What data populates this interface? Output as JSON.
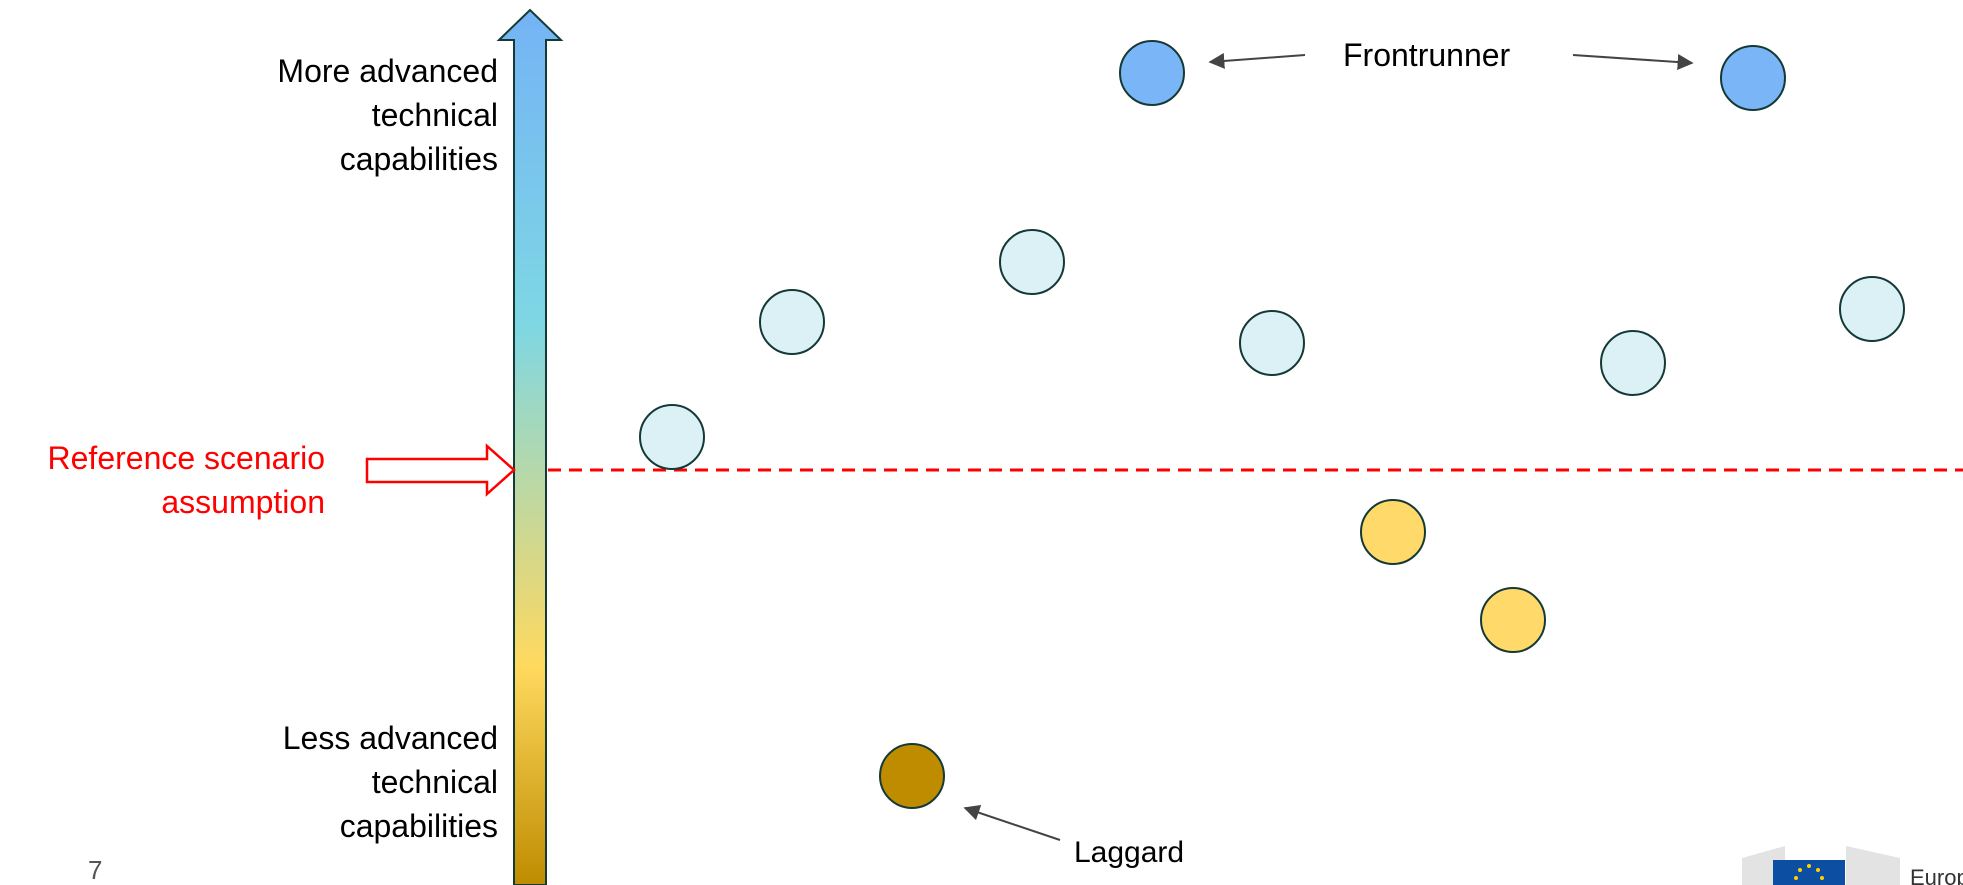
{
  "colors": {
    "reference": "#ff0000",
    "frontrunner_fill": "#7ab6f7",
    "neutral_fill": "#dbf1f6",
    "below_fill": "#ffd96a",
    "laggard_fill": "#bf8c00",
    "outline": "#153a36",
    "arrow_top": "#74b3f6",
    "arrow_mid": "#7ed7e3",
    "arrow_low": "#ffd95e",
    "arrow_bottom": "#bf8c00"
  },
  "labels": {
    "top": [
      "More advanced",
      "technical",
      "capabilities"
    ],
    "bottom": [
      "Less advanced",
      "technical",
      "capabilities"
    ],
    "reference": [
      "Reference scenario",
      "assumption"
    ],
    "frontrunner": "Frontrunner",
    "laggard": "Laggard",
    "page_number": "7"
  },
  "nodes": [
    {
      "category": "frontrunner"
    },
    {
      "category": "frontrunner"
    },
    {
      "category": "neutral"
    },
    {
      "category": "neutral"
    },
    {
      "category": "neutral"
    },
    {
      "category": "neutral"
    },
    {
      "category": "neutral"
    },
    {
      "category": "neutral"
    },
    {
      "category": "below"
    },
    {
      "category": "below"
    },
    {
      "category": "laggard"
    }
  ],
  "logo": {
    "icon": "eu-flag-icon"
  }
}
